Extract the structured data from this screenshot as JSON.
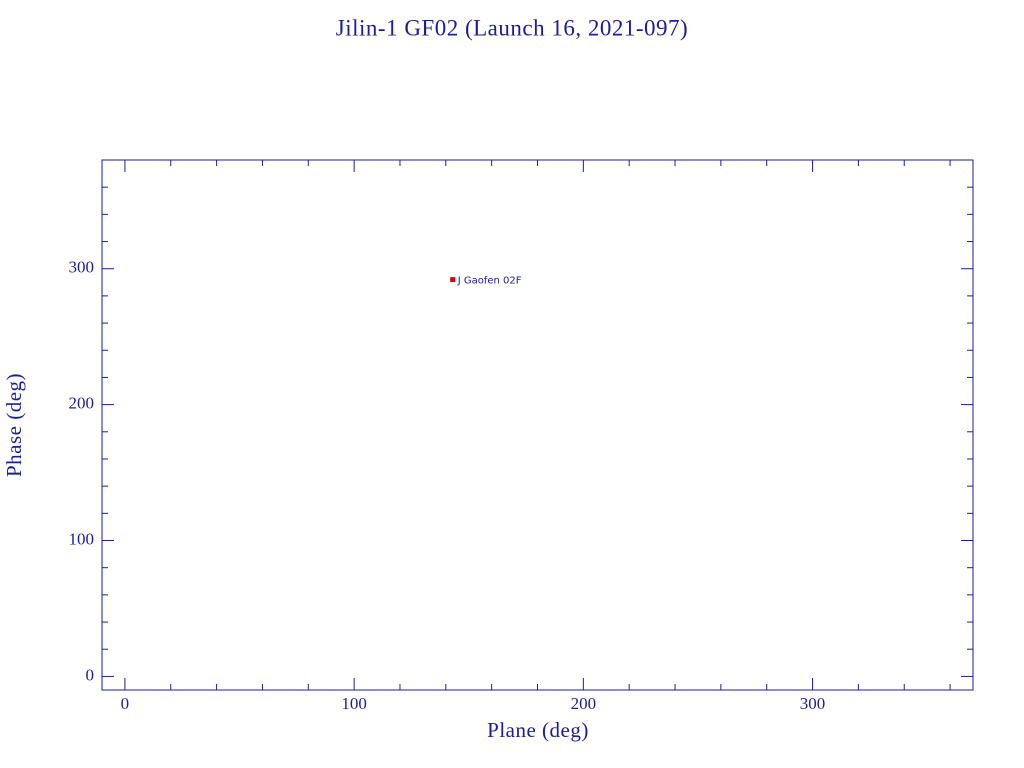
{
  "chart_data": {
    "type": "scatter",
    "title": "Jilin-1 GF02 (Launch 16, 2021-097)",
    "x_label": "Plane (deg)",
    "y_label": "Phase (deg)",
    "series": [
      {
        "name": "J Gaofen 02F",
        "color": "#e00000",
        "x": [
          143
        ],
        "values": [
          292
        ]
      }
    ],
    "xlim": [
      -10,
      370
    ],
    "ylim": [
      -10,
      380
    ],
    "xticks": [
      0,
      100,
      200,
      300
    ],
    "yticks": [
      0,
      100,
      200,
      300
    ],
    "minor_xticks": [
      20,
      40,
      60,
      80,
      120,
      140,
      160,
      180,
      220,
      240,
      260,
      280,
      320,
      340,
      360
    ],
    "minor_yticks": [
      20,
      40,
      60,
      80,
      120,
      140,
      160,
      180,
      220,
      240,
      260,
      280,
      320,
      340,
      360
    ],
    "axis_color": "#1c1c9c"
  }
}
